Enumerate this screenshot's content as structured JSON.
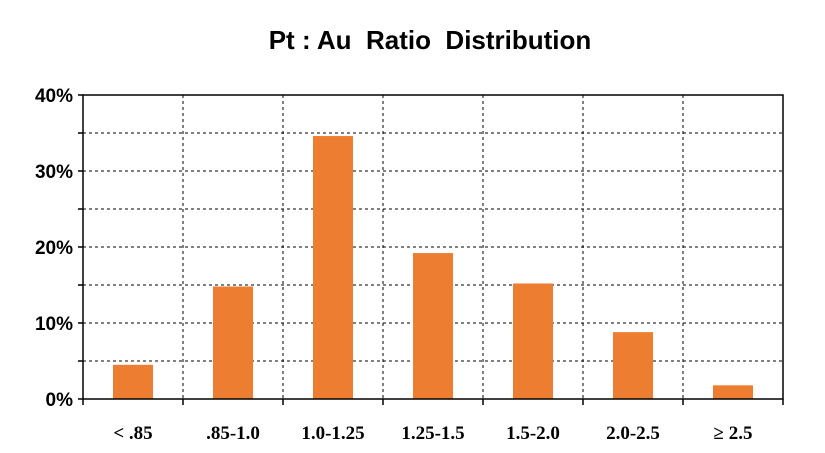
{
  "chart_data": {
    "type": "bar",
    "title": "Pt : Au  Ratio  Distribution",
    "xlabel": "",
    "ylabel": "",
    "categories": [
      "< .85",
      ".85-1.0",
      "1.0-1.25",
      "1.25-1.5",
      "1.5-2.0",
      "2.0-2.5",
      "≥ 2.5"
    ],
    "values": [
      4.5,
      14.8,
      34.6,
      19.2,
      15.2,
      8.8,
      1.8
    ],
    "ylim": [
      0,
      40
    ],
    "yticks": [
      0,
      10,
      20,
      30,
      40
    ],
    "ytick_labels": [
      "0%",
      "10%",
      "20%",
      "30%",
      "40%"
    ],
    "grid": true,
    "bar_color": "#ED7D31"
  }
}
